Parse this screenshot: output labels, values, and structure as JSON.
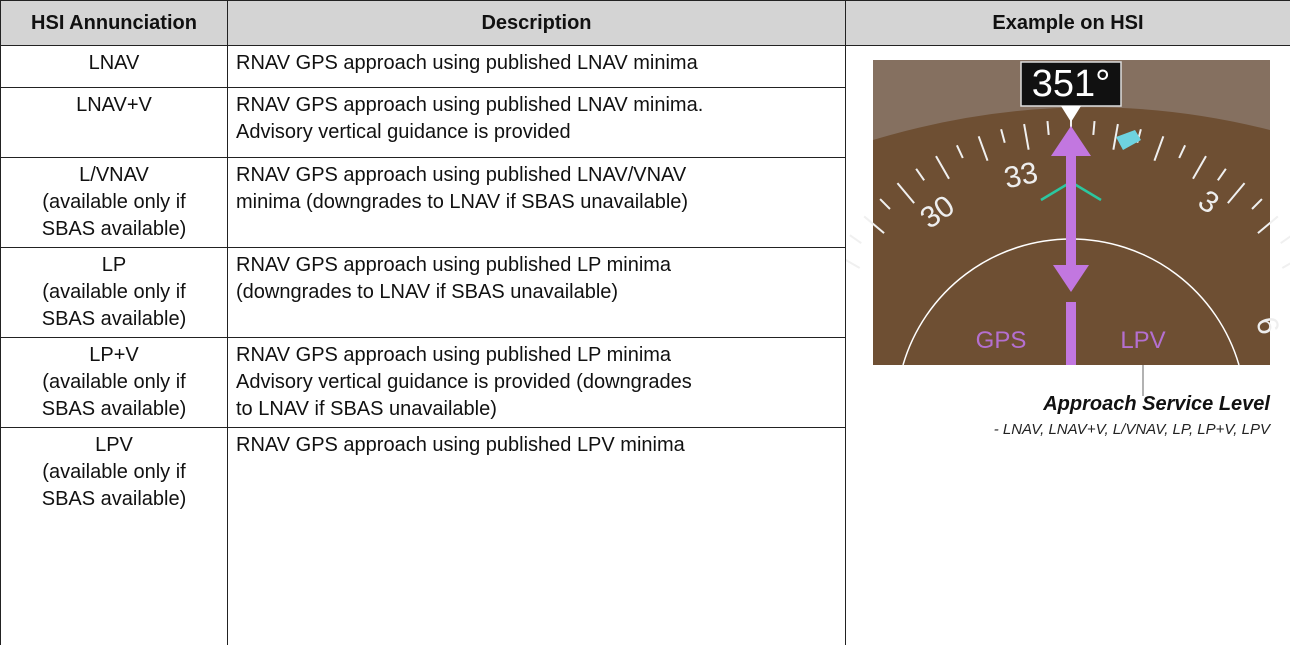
{
  "table": {
    "headers": [
      "HSI Annunciation",
      "Description",
      "Example on HSI"
    ],
    "rows": [
      [
        [
          "LNAV"
        ],
        [
          "RNAV GPS approach using published LNAV minima"
        ]
      ],
      [
        [
          "LNAV+V"
        ],
        [
          "RNAV GPS approach using published LNAV minima.",
          "Advisory vertical guidance is provided"
        ]
      ],
      [
        [
          "L/VNAV",
          "(available only if",
          "SBAS available)"
        ],
        [
          "RNAV GPS approach using published LNAV/VNAV",
          "minima  (downgrades to LNAV if SBAS unavailable)"
        ]
      ],
      [
        [
          "LP",
          "(available only if",
          "SBAS available)"
        ],
        [
          "RNAV GPS approach using published LP minima",
          "(downgrades to LNAV if SBAS unavailable)"
        ]
      ],
      [
        [
          "LP+V",
          "(available only if",
          "SBAS available)"
        ],
        [
          "RNAV GPS approach using published LP minima",
          "Advisory vertical guidance is provided (downgrades",
          "to LNAV if SBAS unavailable)"
        ]
      ],
      [
        [
          "LPV",
          "(available only if",
          "SBAS available)"
        ],
        [
          "RNAV GPS approach using published LPV minima"
        ]
      ]
    ]
  },
  "figure": {
    "heading": "351°",
    "scale_labels": [
      "33",
      "30",
      "3",
      "6"
    ],
    "annunciations": [
      "GPS",
      "LPV"
    ],
    "caption": {
      "title": "Approach Service Level",
      "subtitle": "- LNAV, LNAV+V, L/VNAV, LP, LP+V, LPV"
    }
  }
}
